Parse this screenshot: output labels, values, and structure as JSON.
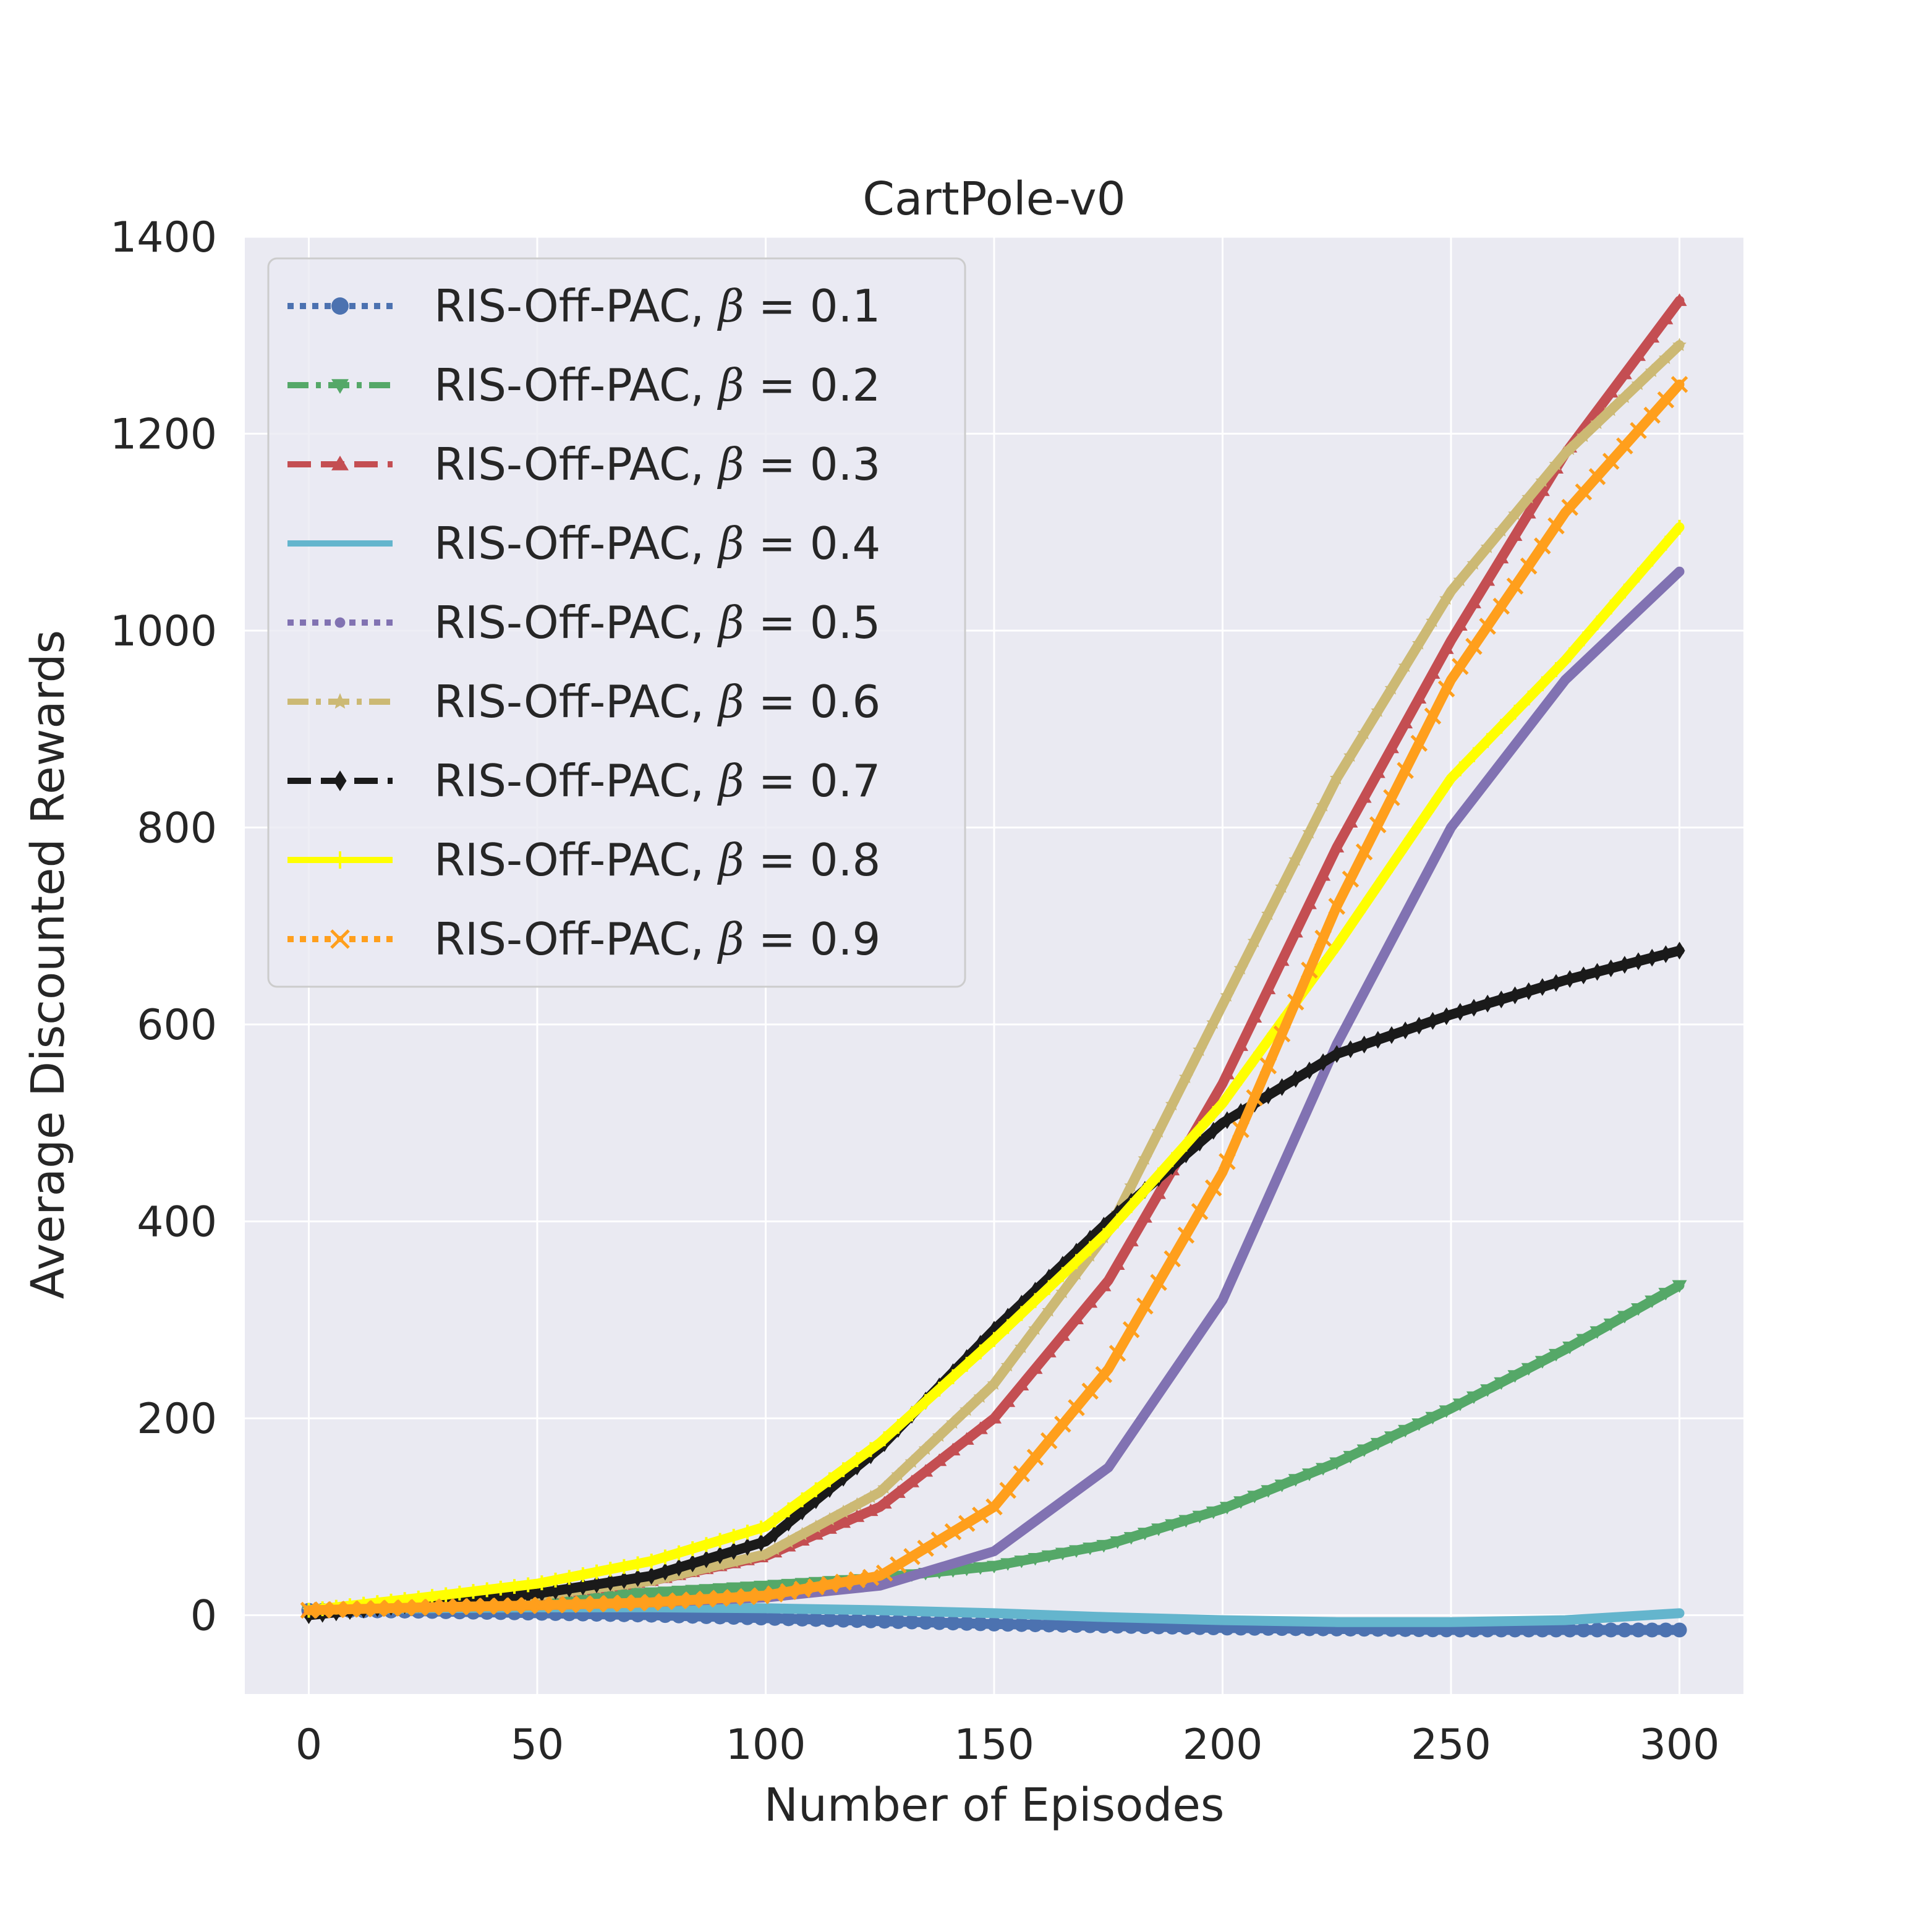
{
  "chart_data": {
    "type": "line",
    "title": "CartPole-v0",
    "xlabel": "Number of Episodes",
    "ylabel": "Average Discounted Rewards",
    "xlim": [
      -14,
      314
    ],
    "ylim": [
      -80,
      1400
    ],
    "xticks": [
      0,
      50,
      100,
      150,
      200,
      250,
      300
    ],
    "xtick_labels": [
      "0",
      "50",
      "100",
      "150",
      "200",
      "250",
      "300"
    ],
    "yticks": [
      0,
      200,
      400,
      600,
      800,
      1000,
      1200,
      1400
    ],
    "ytick_labels": [
      "0",
      "200",
      "400",
      "600",
      "800",
      "1000",
      "1200",
      "1400"
    ],
    "grid": true,
    "legend_position": "upper-left",
    "x": [
      0,
      25,
      50,
      75,
      100,
      125,
      150,
      175,
      200,
      225,
      250,
      275,
      300
    ],
    "series": [
      {
        "name": "RIS-Off-PAC, β = 0.1",
        "label_prefix": "RIS-Off-PAC, ",
        "label_symbol": "β",
        "label_suffix": " = 0.1",
        "color": "#4c72b0",
        "style": "dotted",
        "marker": "circle",
        "values": [
          5,
          4,
          2,
          0,
          -3,
          -6,
          -9,
          -11,
          -13,
          -14,
          -15,
          -15,
          -15
        ]
      },
      {
        "name": "RIS-Off-PAC, β = 0.2",
        "label_prefix": "RIS-Off-PAC, ",
        "label_symbol": "β",
        "label_suffix": " = 0.2",
        "color": "#55a868",
        "style": "dashdot",
        "marker": "triangle-down",
        "values": [
          5,
          12,
          18,
          23,
          30,
          38,
          50,
          72,
          108,
          155,
          210,
          270,
          335
        ]
      },
      {
        "name": "RIS-Off-PAC, β = 0.3",
        "label_prefix": "RIS-Off-PAC, ",
        "label_symbol": "β",
        "label_suffix": " = 0.3",
        "color": "#c44e52",
        "style": "dashed",
        "marker": "triangle-up",
        "values": [
          5,
          12,
          20,
          35,
          60,
          110,
          200,
          340,
          540,
          780,
          990,
          1180,
          1335
        ]
      },
      {
        "name": "RIS-Off-PAC, β = 0.4",
        "label_prefix": "RIS-Off-PAC, ",
        "label_symbol": "β",
        "label_suffix": " = 0.4",
        "color": "#64b5cd",
        "style": "solid",
        "marker": "none",
        "values": [
          5,
          7,
          8,
          8,
          7,
          5,
          2,
          -2,
          -5,
          -7,
          -7,
          -5,
          2
        ]
      },
      {
        "name": "RIS-Off-PAC, β = 0.5",
        "label_prefix": "RIS-Off-PAC, ",
        "label_symbol": "β",
        "label_suffix": " = 0.5",
        "color": "#8172b2",
        "style": "dotted",
        "marker": "point",
        "values": [
          5,
          8,
          10,
          13,
          18,
          30,
          65,
          150,
          320,
          580,
          800,
          950,
          1060
        ]
      },
      {
        "name": "RIS-Off-PAC, β = 0.6",
        "label_prefix": "RIS-Off-PAC, ",
        "label_symbol": "β",
        "label_suffix": " = 0.6",
        "color": "#ccb974",
        "style": "dashdot",
        "marker": "star",
        "values": [
          5,
          12,
          20,
          35,
          62,
          125,
          235,
          390,
          620,
          850,
          1040,
          1180,
          1290
        ]
      },
      {
        "name": "RIS-Off-PAC, β = 0.7",
        "label_prefix": "RIS-Off-PAC, ",
        "label_symbol": "β",
        "label_suffix": " = 0.7",
        "color": "#1a1a1a",
        "style": "dashed",
        "marker": "diamond",
        "values": [
          0,
          12,
          22,
          40,
          75,
          170,
          290,
          400,
          500,
          570,
          610,
          645,
          675
        ]
      },
      {
        "name": "RIS-Off-PAC, β = 0.8",
        "label_prefix": "RIS-Off-PAC, ",
        "label_symbol": "β",
        "label_suffix": " = 0.8",
        "color": "#ffff00",
        "style": "solid",
        "marker": "tick",
        "values": [
          5,
          18,
          32,
          55,
          90,
          175,
          280,
          390,
          520,
          680,
          850,
          970,
          1105
        ]
      },
      {
        "name": "RIS-Off-PAC, β = 0.9",
        "label_prefix": "RIS-Off-PAC, ",
        "label_symbol": "β",
        "label_suffix": " = 0.9",
        "color": "#ff9f1c",
        "style": "dotted",
        "marker": "x",
        "values": [
          5,
          8,
          10,
          13,
          20,
          40,
          110,
          250,
          450,
          720,
          950,
          1120,
          1250
        ]
      }
    ]
  }
}
